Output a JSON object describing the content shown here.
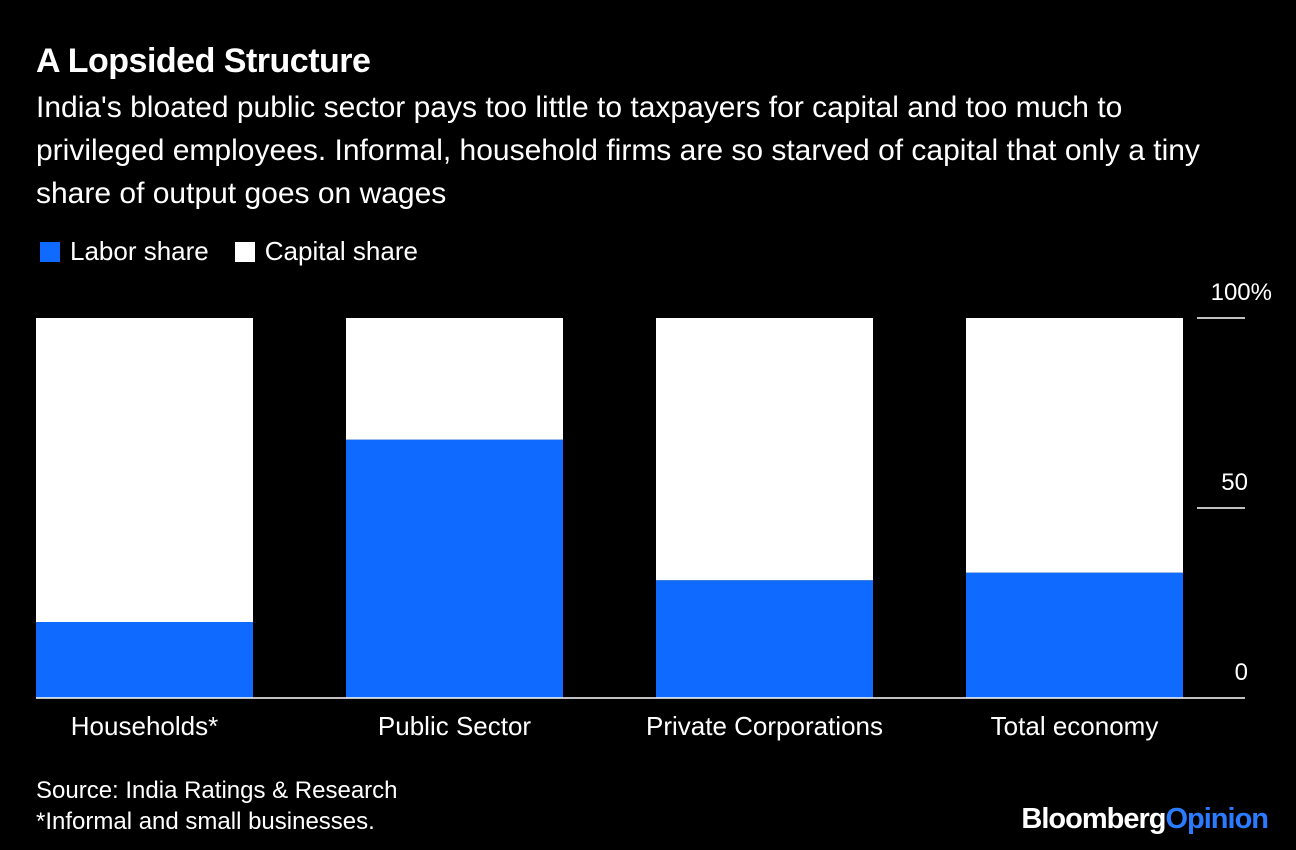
{
  "header": {
    "title": "A Lopsided Structure",
    "subtitle": "India's bloated public sector pays too little to taxpayers for capital and too much to privileged employees. Informal, household firms are so starved of capital that only a tiny share of output goes on wages"
  },
  "legend": {
    "items": [
      {
        "label": "Labor share",
        "color": "#0f6bff"
      },
      {
        "label": "Capital share",
        "color": "#ffffff"
      }
    ]
  },
  "chart_data": {
    "type": "bar",
    "stacked": true,
    "categories": [
      "Households*",
      "Public Sector",
      "Private Corporations",
      "Total economy"
    ],
    "series": [
      {
        "name": "Labor share",
        "values": [
          20,
          68,
          31,
          33
        ],
        "color": "#0f6bff"
      },
      {
        "name": "Capital share",
        "values": [
          80,
          32,
          69,
          67
        ],
        "color": "#ffffff"
      }
    ],
    "ylim": [
      0,
      100
    ],
    "yticks": [
      {
        "value": 0,
        "label": "0"
      },
      {
        "value": 50,
        "label": "50"
      },
      {
        "value": 100,
        "label": "100%"
      }
    ],
    "yaxis_position": "right",
    "grid": false
  },
  "footer": {
    "source": "Source: India Ratings & Research",
    "note": "*Informal and small businesses.",
    "logo_brand": "Bloomberg",
    "logo_suffix": "Opinion"
  }
}
